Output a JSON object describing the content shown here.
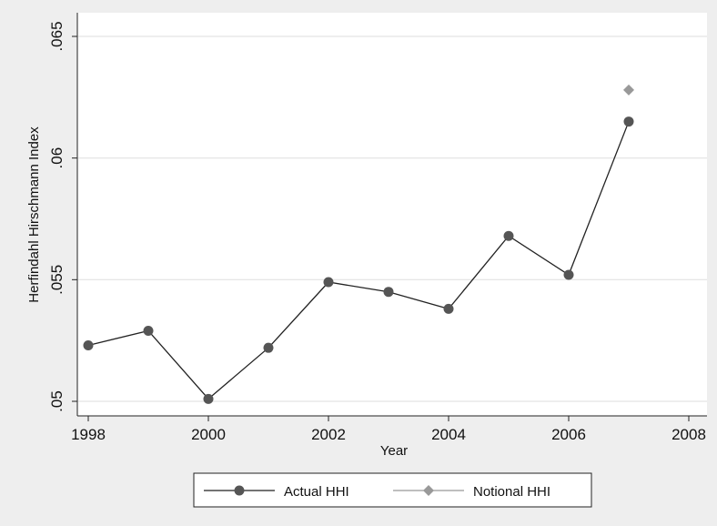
{
  "chart_data": {
    "type": "line",
    "xlabel": "Year",
    "ylabel": "Herfindahl Hirschmann Index",
    "xlim": [
      1998,
      2008
    ],
    "ylim": [
      0.05,
      0.065
    ],
    "x_ticks": [
      1998,
      2000,
      2002,
      2004,
      2006,
      2008
    ],
    "y_ticks": [
      0.05,
      0.055,
      0.06,
      0.065
    ],
    "x_tick_labels": [
      "1998",
      "2000",
      "2002",
      "2004",
      "2006",
      "2008"
    ],
    "y_tick_labels": [
      ".05",
      ".055",
      ".06",
      ".065"
    ],
    "grid": "horizontal",
    "legend_position": "bottom",
    "series": [
      {
        "name": "Actual HHI",
        "marker": "circle",
        "color": "#555555",
        "x": [
          1998,
          1999,
          2000,
          2001,
          2002,
          2003,
          2004,
          2005,
          2006,
          2007
        ],
        "y": [
          0.0523,
          0.0529,
          0.0501,
          0.0522,
          0.0549,
          0.0545,
          0.0538,
          0.0568,
          0.0552,
          0.0615
        ]
      },
      {
        "name": "Notional HHI",
        "marker": "diamond",
        "color": "#999999",
        "x": [
          2007
        ],
        "y": [
          0.0628
        ]
      }
    ]
  }
}
